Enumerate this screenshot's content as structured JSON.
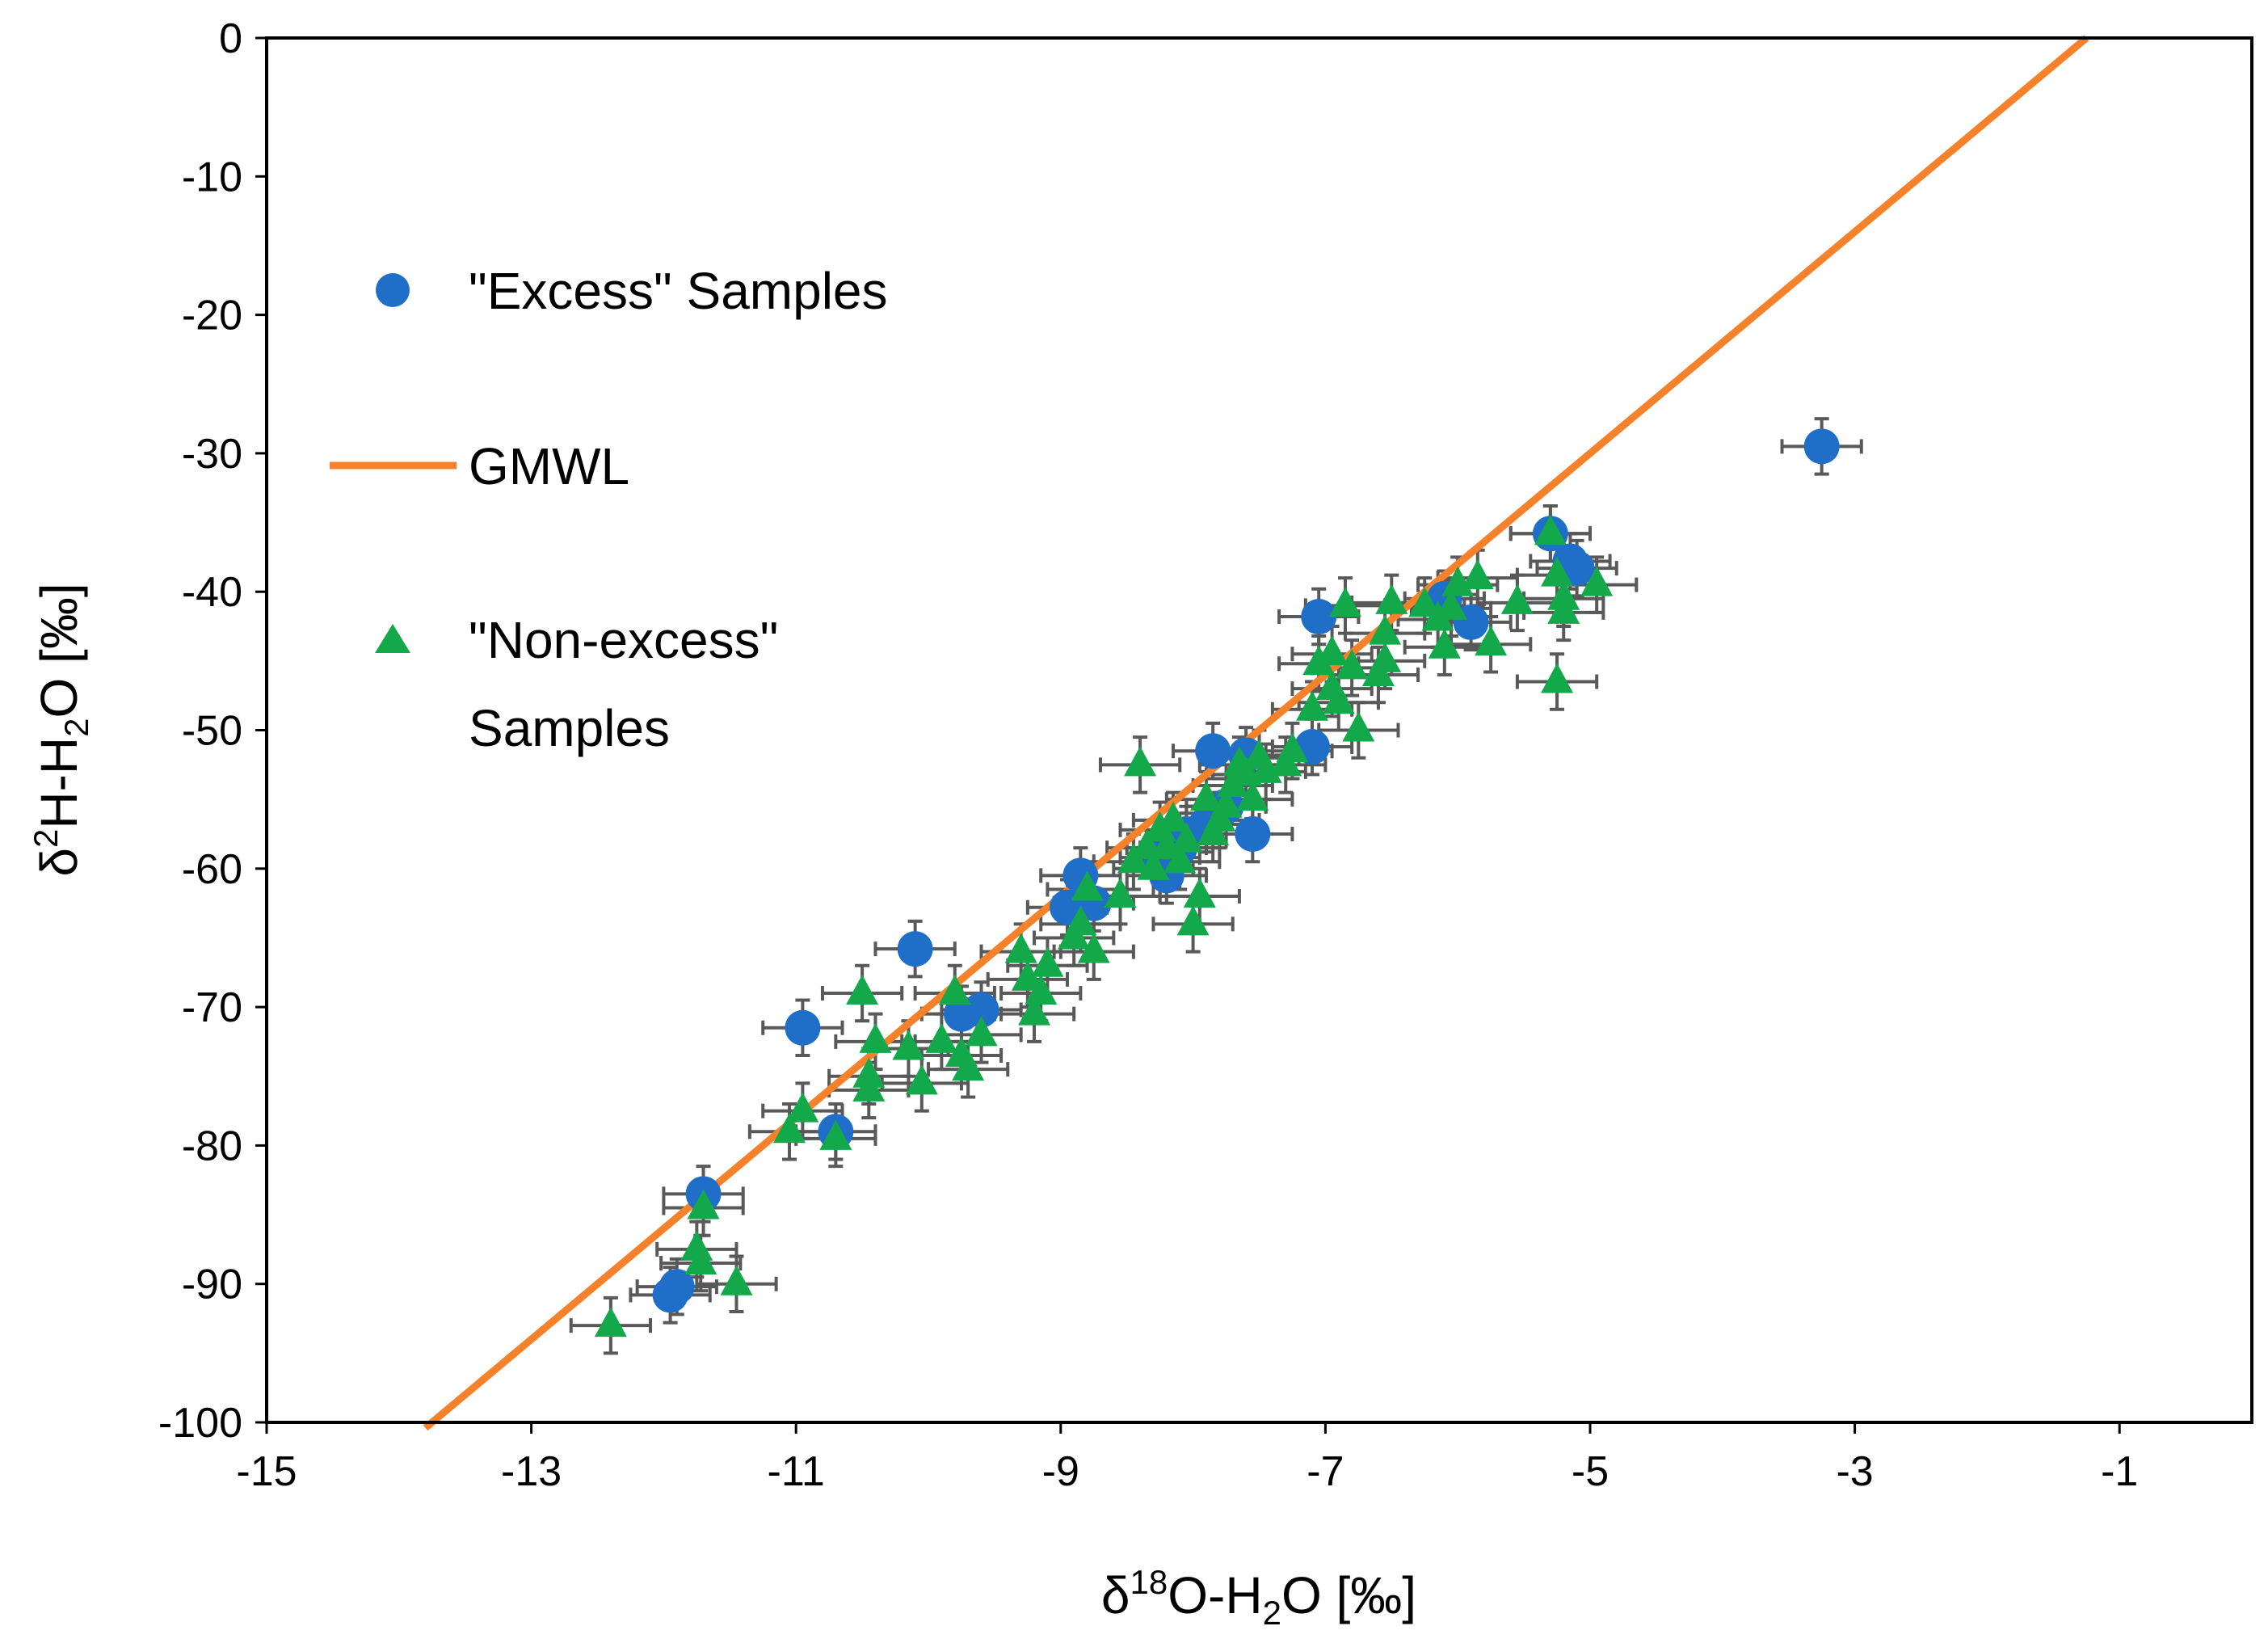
{
  "chart_data": {
    "type": "scatter",
    "title": "",
    "xlabel": {
      "prefix": "δ",
      "sup": "18",
      "main": "O-H",
      "sub": "2",
      "suffix": "O [‰]"
    },
    "ylabel": {
      "prefix": "δ",
      "sup": "2",
      "main": "H-H",
      "sub": "2",
      "suffix": "O [‰]"
    },
    "xlim": [
      -15,
      0
    ],
    "ylim": [
      -100,
      0
    ],
    "xticks": [
      -15,
      -13,
      -11,
      -9,
      -7,
      -5,
      -3,
      -1
    ],
    "yticks": [
      0,
      -10,
      -20,
      -30,
      -40,
      -50,
      -60,
      -70,
      -80,
      -90,
      -100
    ],
    "grid": false,
    "legend_position": "upper-left",
    "error_bars": {
      "x": 0.3,
      "y": 2
    },
    "colors": {
      "excess": "#1f6fc9",
      "gmwl": "#f5822a",
      "non_excess": "#13a84a",
      "error_bar": "#595959",
      "axis": "#000000"
    },
    "legend": {
      "excess_label": "\"Excess\" Samples",
      "gmwl_label": "GMWL",
      "non_excess_label_line1": "\"Non-excess\"",
      "non_excess_label_line2": "Samples"
    },
    "gmwl": {
      "name": "GMWL",
      "slope": 8,
      "intercept": 10,
      "x_range": [
        -13.8,
        -1.25
      ]
    },
    "series": [
      {
        "name": "\"Excess\" Samples",
        "marker": "circle",
        "x": [
          -3.25,
          -5.3,
          -5.1,
          -5.15,
          -5.9,
          -6.1,
          -7.05,
          -7.1,
          -7.55,
          -7.6,
          -7.85,
          -7.75,
          -7.9,
          -8.05,
          -8.1,
          -8.2,
          -8.25,
          -8.75,
          -8.85,
          -8.95,
          -9.6,
          -9.75,
          -10.1,
          -10.95,
          -10.7,
          -11.7,
          -11.9,
          -11.95
        ],
        "y": [
          -29.5,
          -35.8,
          -38.3,
          -37.8,
          -42.2,
          -40.5,
          -41.8,
          -51.2,
          -57.5,
          -51.8,
          -51.5,
          -55.5,
          -56.8,
          -57.5,
          -58.5,
          -60.5,
          -59.2,
          -62.5,
          -60.5,
          -62.8,
          -70.2,
          -70.5,
          -65.8,
          -71.5,
          -79.0,
          -83.5,
          -90.2,
          -90.8
        ]
      },
      {
        "name": "\"Non-excess\" Samples",
        "marker": "triangle",
        "x": [
          -5.3,
          -5.25,
          -5.2,
          -5.25,
          -5.55,
          -4.95,
          -5.2,
          -5.75,
          -5.85,
          -6.0,
          -6.05,
          -6.1,
          -6.15,
          -6.25,
          -6.5,
          -6.55,
          -6.55,
          -6.6,
          -6.75,
          -6.8,
          -6.85,
          -6.9,
          -6.95,
          -6.95,
          -7.05,
          -7.1,
          -7.25,
          -7.3,
          -7.45,
          -7.5,
          -7.55,
          -7.6,
          -7.65,
          -7.7,
          -7.75,
          -7.8,
          -7.85,
          -7.9,
          -7.95,
          -8.0,
          -8.05,
          -8.1,
          -8.15,
          -8.2,
          -8.25,
          -8.3,
          -8.35,
          -8.4,
          -8.45,
          -8.55,
          -8.75,
          -8.8,
          -8.85,
          -8.9,
          -9.1,
          -9.15,
          -9.2,
          -9.25,
          -9.3,
          -9.6,
          -9.7,
          -9.75,
          -9.8,
          -9.9,
          -10.05,
          -10.15,
          -10.4,
          -10.45,
          -10.45,
          -10.5,
          -10.7,
          -10.95,
          -11.05,
          -11.45,
          -11.7,
          -11.72,
          -11.75,
          -12.4
        ],
        "y": [
          -35.8,
          -38.8,
          -40.5,
          -46.5,
          -40.8,
          -39.5,
          -41.5,
          -43.8,
          -39.0,
          -39.5,
          -41.2,
          -44.0,
          -42.0,
          -41.0,
          -40.8,
          -43.0,
          -45.0,
          -46.0,
          -50.0,
          -45.5,
          -41.0,
          -48.0,
          -44.5,
          -47.0,
          -45.2,
          -48.5,
          -51.5,
          -52.5,
          -53.0,
          -52.0,
          -55.0,
          -53.2,
          -52.5,
          -54.0,
          -55.5,
          -56.5,
          -57.5,
          -55.0,
          -62.0,
          -64.0,
          -58.0,
          -59.5,
          -56.5,
          -58.5,
          -57.2,
          -60.0,
          -58.5,
          -52.5,
          -59.5,
          -62.0,
          -66.0,
          -61.5,
          -64.0,
          -65.0,
          -67.0,
          -69.0,
          -70.5,
          -68.0,
          -66.0,
          -72.0,
          -74.5,
          -73.5,
          -69.0,
          -72.5,
          -75.5,
          -73.0,
          -72.5,
          -75.0,
          -76.0,
          -69.0,
          -79.5,
          -77.5,
          -79.0,
          -90.0,
          -84.5,
          -88.5,
          -87.5,
          -93.0
        ]
      }
    ]
  }
}
